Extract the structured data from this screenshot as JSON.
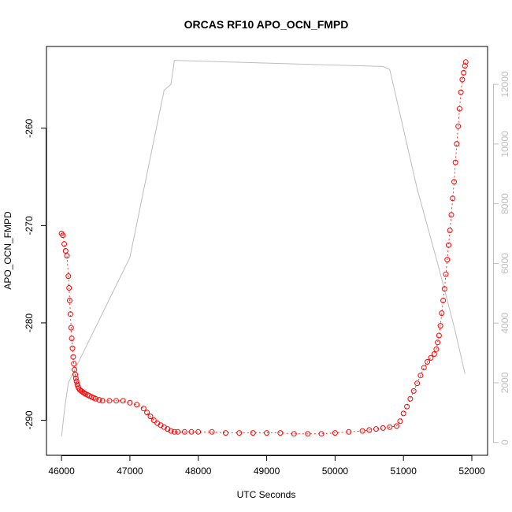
{
  "chart_data": {
    "type": "scatter",
    "title": "ORCAS RF10 APO_OCN_FMPD",
    "xlabel": "UTC Seconds",
    "ylabel": "APO_OCN_FMPD",
    "xlim": [
      45780,
      52230
    ],
    "ylim": [
      -293.6,
      -251.6
    ],
    "y2lim": [
      -430,
      13270
    ],
    "x_ticks": [
      46000,
      47000,
      48000,
      49000,
      50000,
      51000,
      52000
    ],
    "y_ticks": [
      -290,
      -280,
      -270,
      -260
    ],
    "y2_ticks": [
      0,
      2000,
      4000,
      6000,
      8000,
      10000,
      12000
    ],
    "x_tick_labels": [
      "46000",
      "47000",
      "48000",
      "49000",
      "50000",
      "51000",
      "52000"
    ],
    "y_tick_labels": [
      "-290",
      "-280",
      "-270",
      "-260"
    ],
    "y2_tick_labels": [
      "0",
      "2000",
      "4000",
      "6000",
      "8000",
      "10000",
      "12000"
    ],
    "grid": false,
    "series": [
      {
        "color": "#ff0000",
        "marker": "open-circle",
        "points": [
          [
            46000,
            -270.8
          ],
          [
            46020,
            -271.0
          ],
          [
            46040,
            -271.9
          ],
          [
            46060,
            -272.6
          ],
          [
            46080,
            -273.1
          ],
          [
            46100,
            -275.2
          ],
          [
            46110,
            -276.4
          ],
          [
            46120,
            -277.7
          ],
          [
            46130,
            -279.1
          ],
          [
            46140,
            -280.5
          ],
          [
            46150,
            -281.6
          ],
          [
            46160,
            -282.6
          ],
          [
            46170,
            -283.5
          ],
          [
            46180,
            -284.2
          ],
          [
            46190,
            -284.8
          ],
          [
            46200,
            -285.3
          ],
          [
            46210,
            -285.7
          ],
          [
            46220,
            -286.0
          ],
          [
            46230,
            -286.3
          ],
          [
            46240,
            -286.5
          ],
          [
            46250,
            -286.7
          ],
          [
            46270,
            -286.9
          ],
          [
            46290,
            -287.0
          ],
          [
            46310,
            -287.1
          ],
          [
            46330,
            -287.2
          ],
          [
            46350,
            -287.3
          ],
          [
            46380,
            -287.4
          ],
          [
            46410,
            -287.5
          ],
          [
            46440,
            -287.6
          ],
          [
            46470,
            -287.7
          ],
          [
            46500,
            -287.8
          ],
          [
            46550,
            -287.9
          ],
          [
            46600,
            -288.0
          ],
          [
            46700,
            -288.0
          ],
          [
            46800,
            -288.0
          ],
          [
            46900,
            -288.0
          ],
          [
            47000,
            -288.2
          ],
          [
            47100,
            -288.4
          ],
          [
            47200,
            -288.8
          ],
          [
            47250,
            -289.2
          ],
          [
            47300,
            -289.6
          ],
          [
            47350,
            -290.0
          ],
          [
            47400,
            -290.3
          ],
          [
            47450,
            -290.5
          ],
          [
            47500,
            -290.7
          ],
          [
            47550,
            -290.9
          ],
          [
            47600,
            -291.1
          ],
          [
            47650,
            -291.2
          ],
          [
            47700,
            -291.2
          ],
          [
            47800,
            -291.2
          ],
          [
            47900,
            -291.2
          ],
          [
            48000,
            -291.2
          ],
          [
            48200,
            -291.2
          ],
          [
            48400,
            -291.3
          ],
          [
            48600,
            -291.3
          ],
          [
            48800,
            -291.3
          ],
          [
            49000,
            -291.3
          ],
          [
            49200,
            -291.3
          ],
          [
            49400,
            -291.4
          ],
          [
            49600,
            -291.4
          ],
          [
            49800,
            -291.4
          ],
          [
            50000,
            -291.3
          ],
          [
            50200,
            -291.2
          ],
          [
            50400,
            -291.1
          ],
          [
            50500,
            -291.0
          ],
          [
            50600,
            -290.9
          ],
          [
            50700,
            -290.8
          ],
          [
            50800,
            -290.7
          ],
          [
            50900,
            -290.6
          ],
          [
            50950,
            -290.1
          ],
          [
            51000,
            -289.3
          ],
          [
            51050,
            -288.6
          ],
          [
            51100,
            -287.8
          ],
          [
            51150,
            -287.0
          ],
          [
            51200,
            -286.2
          ],
          [
            51250,
            -285.4
          ],
          [
            51300,
            -284.6
          ],
          [
            51350,
            -284.0
          ],
          [
            51400,
            -283.6
          ],
          [
            51450,
            -283.2
          ],
          [
            51480,
            -282.7
          ],
          [
            51500,
            -282.0
          ],
          [
            51520,
            -281.3
          ],
          [
            51540,
            -280.3
          ],
          [
            51560,
            -279.0
          ],
          [
            51580,
            -277.7
          ],
          [
            51600,
            -276.5
          ],
          [
            51620,
            -275.0
          ],
          [
            51640,
            -273.5
          ],
          [
            51660,
            -272.0
          ],
          [
            51680,
            -270.5
          ],
          [
            51700,
            -268.9
          ],
          [
            51720,
            -267.2
          ],
          [
            51740,
            -265.5
          ],
          [
            51760,
            -263.5
          ],
          [
            51780,
            -261.6
          ],
          [
            51800,
            -259.8
          ],
          [
            51820,
            -258.0
          ],
          [
            51840,
            -256.3
          ],
          [
            51860,
            -255.0
          ],
          [
            51880,
            -254.3
          ],
          [
            51900,
            -253.6
          ],
          [
            51910,
            -253.2
          ]
        ]
      },
      {
        "color": "#bdbdbd",
        "axis": "right",
        "line": "solid",
        "points": [
          [
            46000,
            200
          ],
          [
            46050,
            1200
          ],
          [
            46100,
            2000
          ],
          [
            47000,
            6200
          ],
          [
            47500,
            11800
          ],
          [
            47600,
            12000
          ],
          [
            47650,
            12800
          ],
          [
            47700,
            12800
          ],
          [
            50700,
            12600
          ],
          [
            50800,
            12500
          ],
          [
            51200,
            8500
          ],
          [
            51500,
            6000
          ],
          [
            51750,
            3800
          ],
          [
            51900,
            2300
          ]
        ]
      }
    ]
  }
}
